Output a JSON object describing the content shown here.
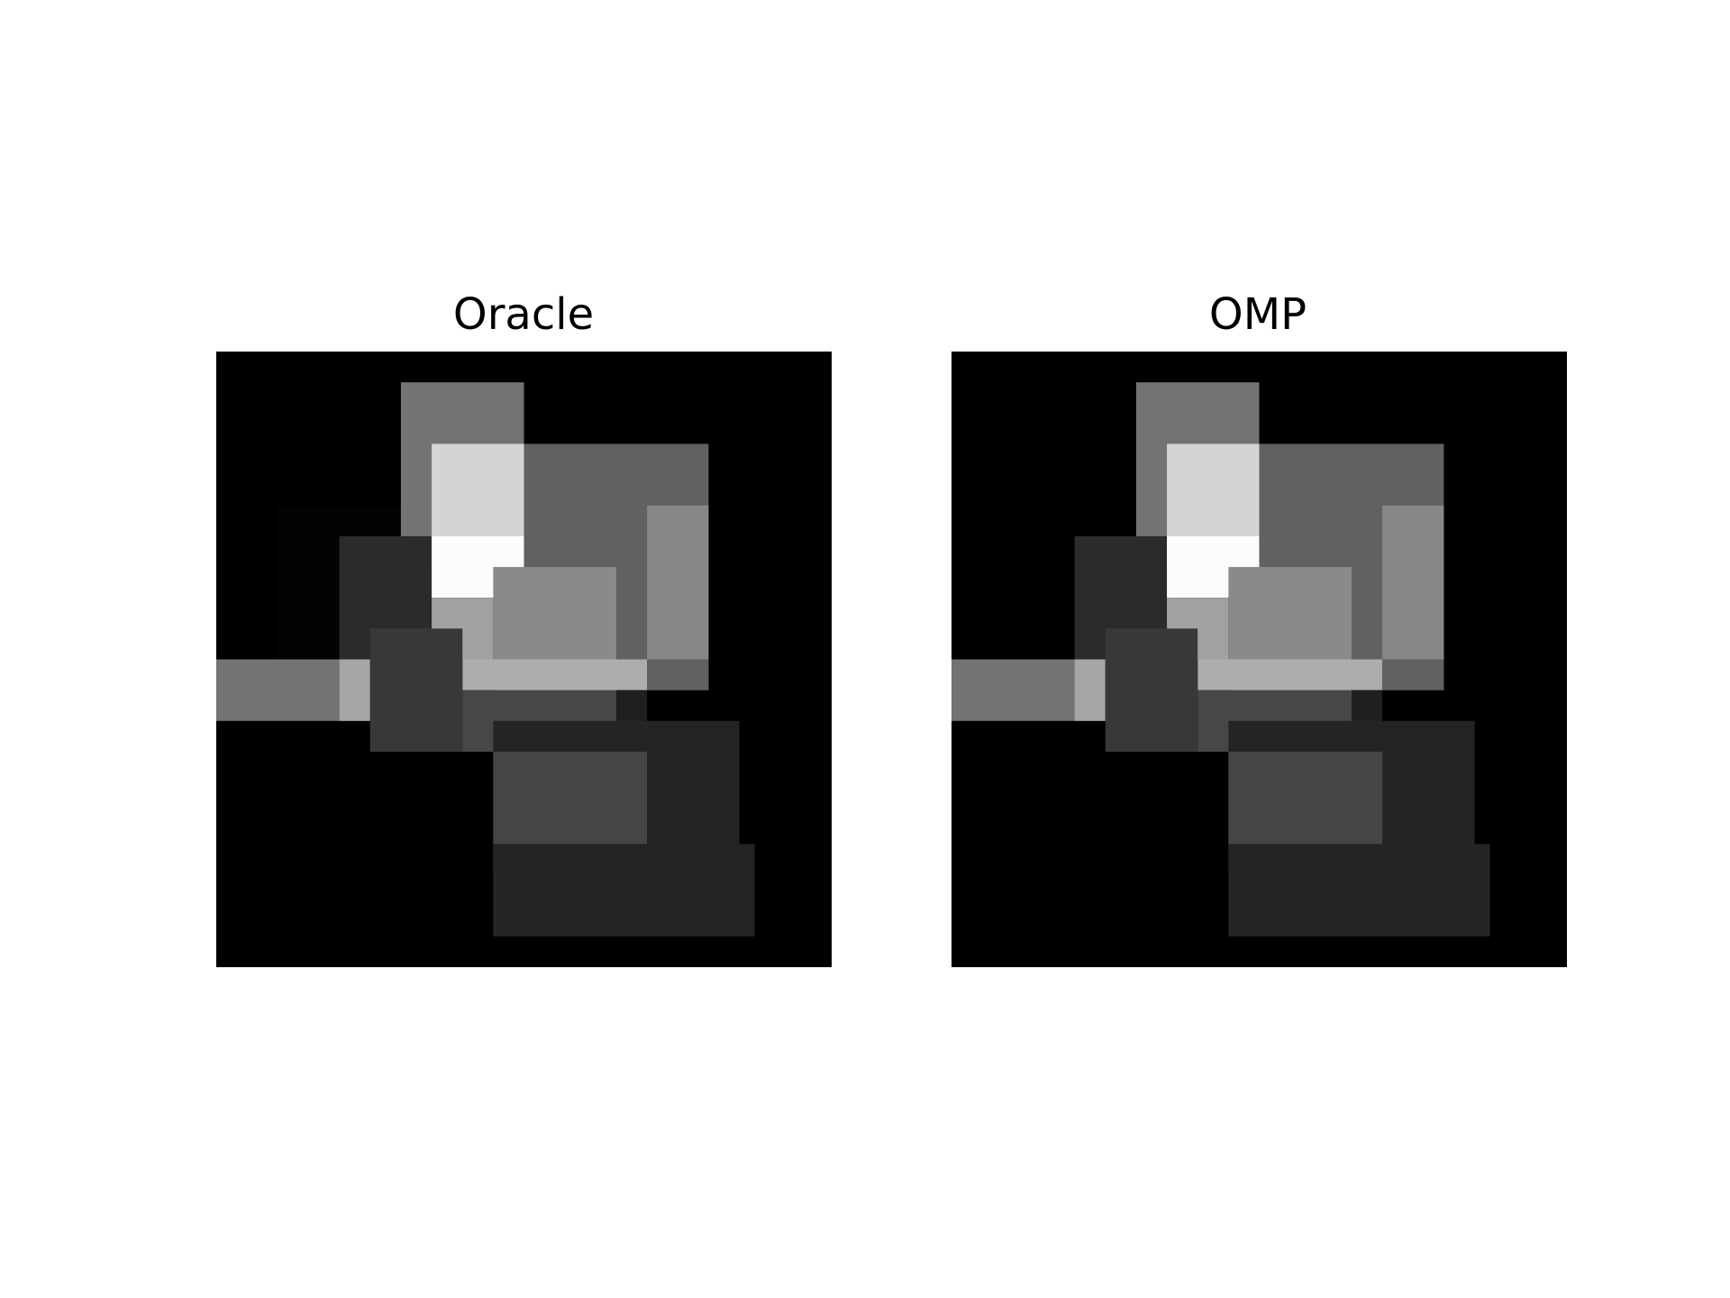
{
  "chart_data": [
    {
      "type": "heatmap",
      "title": "Oracle",
      "colormap": "gray",
      "axes": "off",
      "grid": false,
      "value_range": [
        0,
        1
      ],
      "shape": [
        20,
        20
      ],
      "rects": [
        {
          "row0": 0,
          "row1": 20,
          "col0": 0,
          "col1": 20,
          "value": 0.0
        },
        {
          "row0": 5,
          "row1": 10,
          "col0": 2,
          "col1": 11,
          "value": 0.01
        },
        {
          "row0": 1,
          "row1": 7,
          "col0": 6,
          "col1": 10,
          "value": 0.45
        },
        {
          "row0": 3,
          "row1": 11,
          "col0": 9,
          "col1": 16,
          "value": 0.38
        },
        {
          "row0": 5,
          "row1": 10,
          "col0": 14,
          "col1": 16,
          "value": 0.53
        },
        {
          "row0": 6,
          "row1": 12,
          "col0": 4,
          "col1": 7,
          "value": 0.17
        },
        {
          "row0": 3,
          "row1": 7,
          "col0": 7,
          "col1": 10,
          "value": 0.83
        },
        {
          "row0": 6,
          "row1": 8,
          "col0": 7,
          "col1": 10,
          "value": 0.99
        },
        {
          "row0": 8,
          "row1": 10,
          "col0": 7,
          "col1": 9,
          "value": 0.63
        },
        {
          "row0": 7,
          "row1": 12,
          "col0": 9,
          "col1": 13,
          "value": 0.54
        },
        {
          "row0": 10,
          "row1": 11,
          "col0": 8,
          "col1": 14,
          "value": 0.68
        },
        {
          "row0": 10,
          "row1": 11,
          "col0": 14,
          "col1": 16,
          "value": 0.38
        },
        {
          "row0": 10,
          "row1": 12,
          "col0": 0,
          "col1": 4,
          "value": 0.45
        },
        {
          "row0": 10,
          "row1": 12,
          "col0": 4,
          "col1": 5,
          "value": 0.65
        },
        {
          "row0": 9,
          "row1": 13,
          "col0": 5,
          "col1": 8,
          "value": 0.22
        },
        {
          "row0": 11,
          "row1": 13,
          "col0": 8,
          "col1": 13,
          "value": 0.28
        },
        {
          "row0": 11,
          "row1": 13,
          "col0": 13,
          "col1": 14,
          "value": 0.12
        },
        {
          "row0": 12,
          "row1": 17,
          "col0": 9,
          "col1": 17,
          "value": 0.14
        },
        {
          "row0": 13,
          "row1": 16,
          "col0": 9,
          "col1": 14,
          "value": 0.27
        },
        {
          "row0": 16,
          "row1": 19,
          "col0": 9,
          "col1": 17.5,
          "value": 0.14
        }
      ]
    },
    {
      "type": "heatmap",
      "title": "OMP",
      "colormap": "gray",
      "axes": "off",
      "grid": false,
      "value_range": [
        0,
        1
      ],
      "shape": [
        20,
        20
      ],
      "rects": [
        {
          "row0": 0,
          "row1": 20,
          "col0": 0,
          "col1": 20,
          "value": 0.0
        },
        {
          "row0": 1,
          "row1": 7,
          "col0": 6,
          "col1": 10,
          "value": 0.45
        },
        {
          "row0": 3,
          "row1": 11,
          "col0": 9,
          "col1": 16,
          "value": 0.38
        },
        {
          "row0": 5,
          "row1": 10,
          "col0": 14,
          "col1": 16,
          "value": 0.53
        },
        {
          "row0": 6,
          "row1": 12,
          "col0": 4,
          "col1": 7,
          "value": 0.17
        },
        {
          "row0": 3,
          "row1": 7,
          "col0": 7,
          "col1": 10,
          "value": 0.83
        },
        {
          "row0": 6,
          "row1": 8,
          "col0": 7,
          "col1": 10,
          "value": 0.99
        },
        {
          "row0": 8,
          "row1": 10,
          "col0": 7,
          "col1": 9,
          "value": 0.63
        },
        {
          "row0": 7,
          "row1": 12,
          "col0": 9,
          "col1": 13,
          "value": 0.54
        },
        {
          "row0": 10,
          "row1": 11,
          "col0": 8,
          "col1": 14,
          "value": 0.68
        },
        {
          "row0": 10,
          "row1": 11,
          "col0": 14,
          "col1": 16,
          "value": 0.38
        },
        {
          "row0": 10,
          "row1": 12,
          "col0": 0,
          "col1": 4,
          "value": 0.45
        },
        {
          "row0": 10,
          "row1": 12,
          "col0": 4,
          "col1": 5,
          "value": 0.65
        },
        {
          "row0": 9,
          "row1": 13,
          "col0": 5,
          "col1": 8,
          "value": 0.22
        },
        {
          "row0": 11,
          "row1": 13,
          "col0": 8,
          "col1": 13,
          "value": 0.28
        },
        {
          "row0": 11,
          "row1": 13,
          "col0": 13,
          "col1": 14,
          "value": 0.12
        },
        {
          "row0": 12,
          "row1": 17,
          "col0": 9,
          "col1": 17,
          "value": 0.14
        },
        {
          "row0": 13,
          "row1": 16,
          "col0": 9,
          "col1": 14,
          "value": 0.27
        },
        {
          "row0": 16,
          "row1": 19,
          "col0": 9,
          "col1": 17.5,
          "value": 0.14
        }
      ]
    }
  ]
}
